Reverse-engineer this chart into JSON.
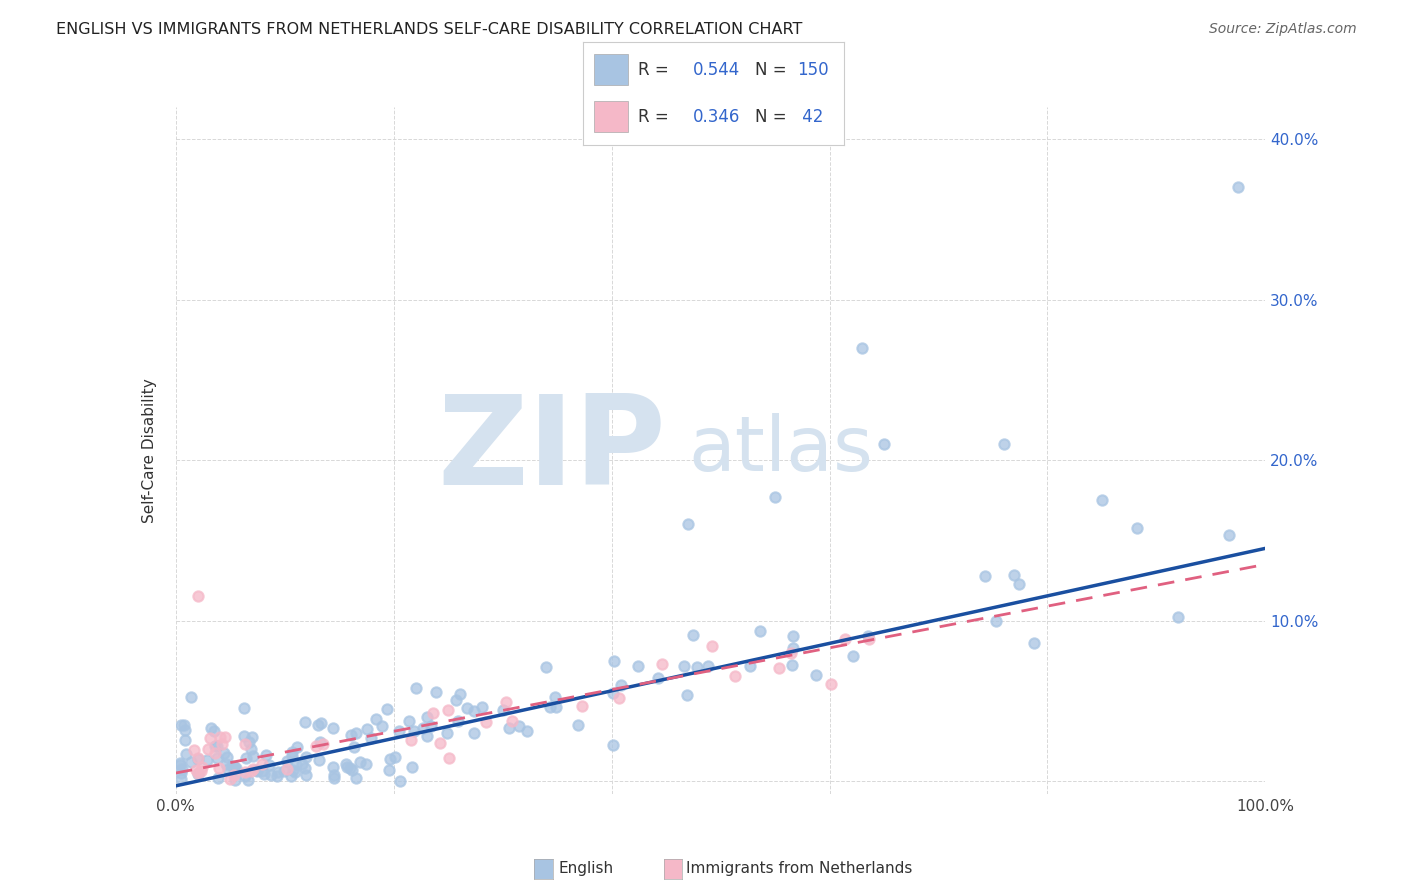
{
  "title": "ENGLISH VS IMMIGRANTS FROM NETHERLANDS SELF-CARE DISABILITY CORRELATION CHART",
  "source": "Source: ZipAtlas.com",
  "ylabel": "Self-Care Disability",
  "xlim": [
    0.0,
    1.0
  ],
  "ylim": [
    -0.008,
    0.42
  ],
  "ytick_vals": [
    0.0,
    0.1,
    0.2,
    0.3,
    0.4
  ],
  "ytick_labels_right": [
    "",
    "10.0%",
    "20.0%",
    "30.0%",
    "40.0%"
  ],
  "xtick_vals": [
    0.0,
    0.2,
    0.4,
    0.6,
    0.8,
    1.0
  ],
  "xtick_labels": [
    "0.0%",
    "",
    "",
    "",
    "",
    "100.0%"
  ],
  "english_R": "0.544",
  "english_N": "150",
  "netherlands_R": "0.346",
  "netherlands_N": "42",
  "english_marker_color": "#a8c4e2",
  "netherlands_marker_color": "#f5b8c8",
  "english_line_color": "#1a4fa0",
  "netherlands_line_color": "#e06080",
  "watermark_zip": "ZIP",
  "watermark_atlas": "atlas",
  "watermark_color": "#d5e2ef",
  "legend_label_english": "English",
  "legend_label_netherlands": "Immigrants from Netherlands",
  "background_color": "#ffffff",
  "grid_color": "#d8d8d8",
  "eng_line_x0": 0.0,
  "eng_line_y0": -0.003,
  "eng_line_x1": 1.0,
  "eng_line_y1": 0.145,
  "neth_line_x0": 0.0,
  "neth_line_y0": 0.005,
  "neth_line_x1": 1.0,
  "neth_line_y1": 0.135,
  "title_fontsize": 11.5,
  "source_fontsize": 10,
  "tick_fontsize": 11,
  "legend_fontsize": 12
}
